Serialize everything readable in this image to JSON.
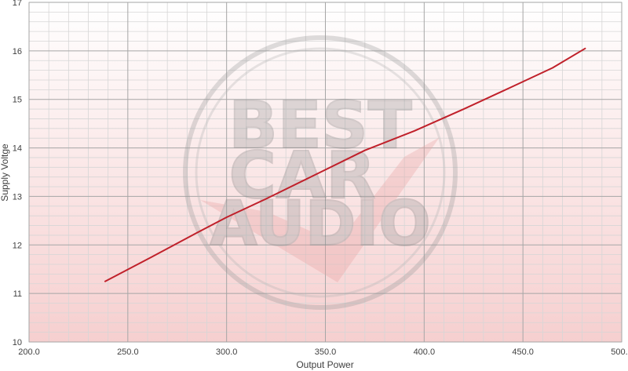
{
  "chart_data": {
    "type": "line",
    "title": "",
    "xlabel": "Output Power",
    "ylabel": "Supply Voltge",
    "xlim": [
      200,
      500
    ],
    "ylim": [
      10,
      17
    ],
    "x_ticks": [
      200,
      250,
      300,
      350,
      400,
      450,
      500
    ],
    "x_tick_labels": [
      "200.0",
      "250.0",
      "300.0",
      "350.0",
      "400.0",
      "450.0",
      "500.0"
    ],
    "y_ticks": [
      10,
      11,
      12,
      13,
      14,
      15,
      16,
      17
    ],
    "y_tick_labels": [
      "10",
      "11",
      "12",
      "13",
      "14",
      "15",
      "16",
      "17"
    ],
    "grid": true,
    "series": [
      {
        "color": "#c0202a",
        "x": [
          238.5,
          262,
          285,
          300,
          320,
          345,
          370,
          395,
          420,
          445,
          465,
          481.5
        ],
        "y": [
          11.25,
          11.75,
          12.25,
          12.57,
          12.95,
          13.45,
          13.95,
          14.35,
          14.8,
          15.27,
          15.65,
          16.05
        ]
      }
    ],
    "watermark": {
      "lines": [
        "BEST",
        "CAR",
        "AUDIO"
      ]
    }
  }
}
